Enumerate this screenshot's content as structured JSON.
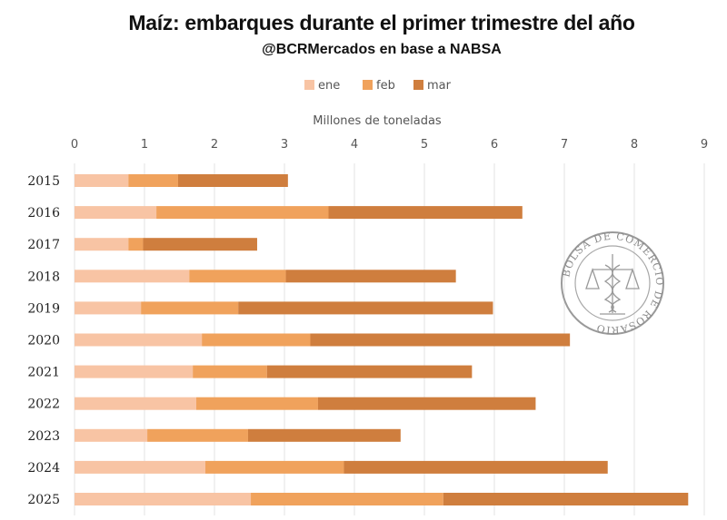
{
  "title": "Maíz: embarques durante el primer trimestre del año",
  "subtitle": "@BCRMercados en base a NABSA",
  "watermark_text": "BOLSA DE COMERCIO DE ROSARIO",
  "chart_data": {
    "type": "bar",
    "orientation": "horizontal",
    "stacked": true,
    "xlabel": "Millones de toneladas",
    "ylabel": "",
    "xlim": [
      0,
      9
    ],
    "x_ticks": [
      0,
      1,
      2,
      3,
      4,
      5,
      6,
      7,
      8,
      9
    ],
    "grid": true,
    "legend_position": "top",
    "categories": [
      "2015",
      "2016",
      "2017",
      "2018",
      "2019",
      "2020",
      "2021",
      "2022",
      "2023",
      "2024",
      "2025"
    ],
    "series": [
      {
        "name": "ene",
        "color": "#f8c4a4",
        "values": [
          0.77,
          1.17,
          0.77,
          1.64,
          0.95,
          1.82,
          1.69,
          1.74,
          1.04,
          1.87,
          2.52
        ]
      },
      {
        "name": "feb",
        "color": "#f0a25c",
        "values": [
          0.71,
          2.46,
          0.21,
          1.38,
          1.39,
          1.55,
          1.06,
          1.74,
          1.44,
          1.98,
          2.75
        ]
      },
      {
        "name": "mar",
        "color": "#cf7e3e",
        "values": [
          1.57,
          2.77,
          1.63,
          2.43,
          3.64,
          3.71,
          2.93,
          3.11,
          2.18,
          3.77,
          3.5
        ]
      }
    ]
  }
}
